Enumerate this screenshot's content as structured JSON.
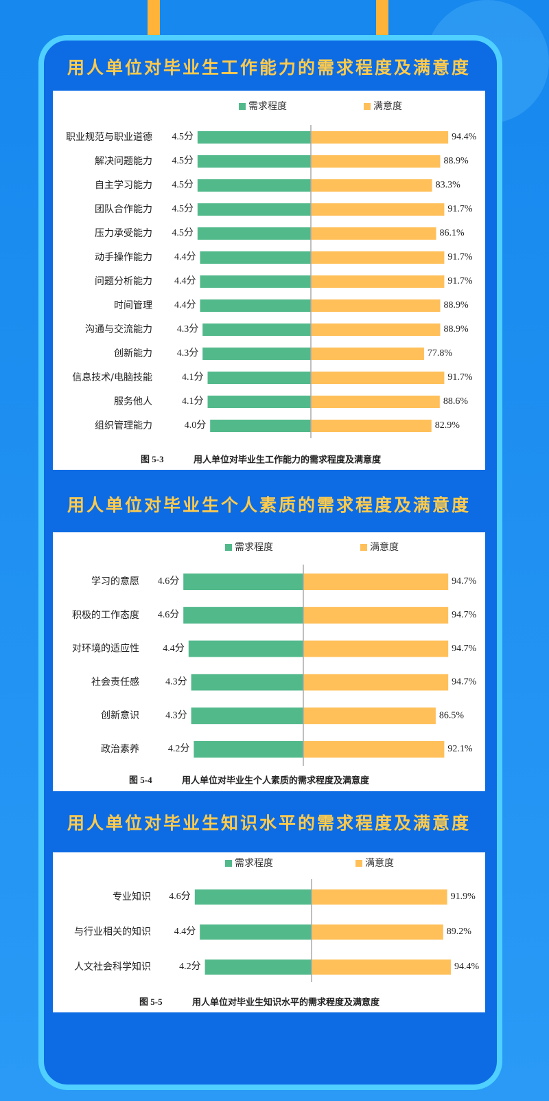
{
  "chart_data": [
    {
      "type": "butterfly",
      "title": "用人单位对毕业生工作能力的需求程度及满意度",
      "figure": "图 5-3",
      "caption": "用人单位对毕业生工作能力的需求程度及满意度",
      "categories": [
        "职业规范与职业道德",
        "解决问题能力",
        "自主学习能力",
        "团队合作能力",
        "压力承受能力",
        "动手操作能力",
        "问题分析能力",
        "时间管理",
        "沟通与交流能力",
        "创新能力",
        "信息技术/电脑技能",
        "服务他人",
        "组织管理能力"
      ],
      "series": [
        {
          "name": "需求程度",
          "color": "#52b98b",
          "values": [
            4.5,
            4.5,
            4.5,
            4.5,
            4.5,
            4.4,
            4.4,
            4.4,
            4.3,
            4.3,
            4.1,
            4.1,
            4.0
          ],
          "value_labels": [
            "4.5分",
            "4.5分",
            "4.5分",
            "4.5分",
            "4.5分",
            "4.4分",
            "4.4分",
            "4.4分",
            "4.3分",
            "4.3分",
            "4.1分",
            "4.1分",
            "4.0分"
          ]
        },
        {
          "name": "满意度",
          "color": "#ffc05a",
          "values": [
            94.4,
            88.9,
            83.3,
            91.7,
            86.1,
            91.7,
            91.7,
            88.9,
            88.9,
            77.8,
            91.7,
            88.6,
            82.9
          ],
          "value_labels": [
            "94.4%",
            "88.9%",
            "83.3%",
            "91.7%",
            "86.1%",
            "91.7%",
            "91.7%",
            "88.9%",
            "88.9%",
            "77.8%",
            "91.7%",
            "88.6%",
            "82.9%"
          ]
        }
      ]
    },
    {
      "type": "butterfly",
      "title": "用人单位对毕业生个人素质的需求程度及满意度",
      "figure": "图 5-4",
      "caption": "用人单位对毕业生个人素质的需求程度及满意度",
      "categories": [
        "学习的意愿",
        "积极的工作态度",
        "对环境的适应性",
        "社会责任感",
        "创新意识",
        "政治素养"
      ],
      "series": [
        {
          "name": "需求程度",
          "color": "#52b98b",
          "values": [
            4.6,
            4.6,
            4.4,
            4.3,
            4.3,
            4.2
          ],
          "value_labels": [
            "4.6分",
            "4.6分",
            "4.4分",
            "4.3分",
            "4.3分",
            "4.2分"
          ]
        },
        {
          "name": "满意度",
          "color": "#ffc05a",
          "values": [
            94.7,
            94.7,
            94.7,
            94.7,
            86.5,
            92.1
          ],
          "value_labels": [
            "94.7%",
            "94.7%",
            "94.7%",
            "94.7%",
            "86.5%",
            "92.1%"
          ]
        }
      ]
    },
    {
      "type": "butterfly",
      "title": "用人单位对毕业生知识水平的需求程度及满意度",
      "figure": "图 5-5",
      "caption": "用人单位对毕业生知识水平的需求程度及满意度",
      "categories": [
        "专业知识",
        "与行业相关的知识",
        "人文社会科学知识"
      ],
      "series": [
        {
          "name": "需求程度",
          "color": "#52b98b",
          "values": [
            4.6,
            4.4,
            4.2
          ],
          "value_labels": [
            "4.6分",
            "4.4分",
            "4.2分"
          ]
        },
        {
          "name": "满意度",
          "color": "#ffc05a",
          "values": [
            91.9,
            89.2,
            94.4
          ],
          "value_labels": [
            "91.9%",
            "89.2%",
            "94.4%"
          ]
        }
      ]
    }
  ]
}
